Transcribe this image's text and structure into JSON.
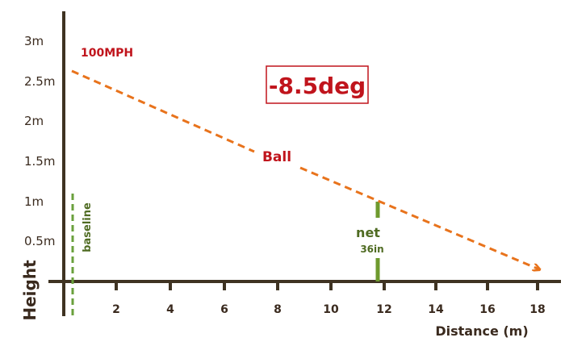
{
  "diagram": {
    "y_axis_label": "Height",
    "x_axis_label": "Distance (m)",
    "y_ticks": [
      "3m",
      "2.5m",
      "2m",
      "1.5m",
      "1m",
      "0.5m"
    ],
    "x_ticks": [
      "2",
      "4",
      "6",
      "8",
      "10",
      "12",
      "14",
      "16",
      "18"
    ],
    "speed_label": "100MPH",
    "angle_label": "-8.5deg",
    "ball_label": "Ball",
    "net_label": "net",
    "net_height_label": "36in",
    "baseline_label": "baseline",
    "colors": {
      "axis": "#3f3322",
      "trajectory": "#e8731c",
      "text_red": "#c0141c",
      "net_green": "#6e9a2e",
      "baseline_green": "#6aa03c"
    }
  }
}
